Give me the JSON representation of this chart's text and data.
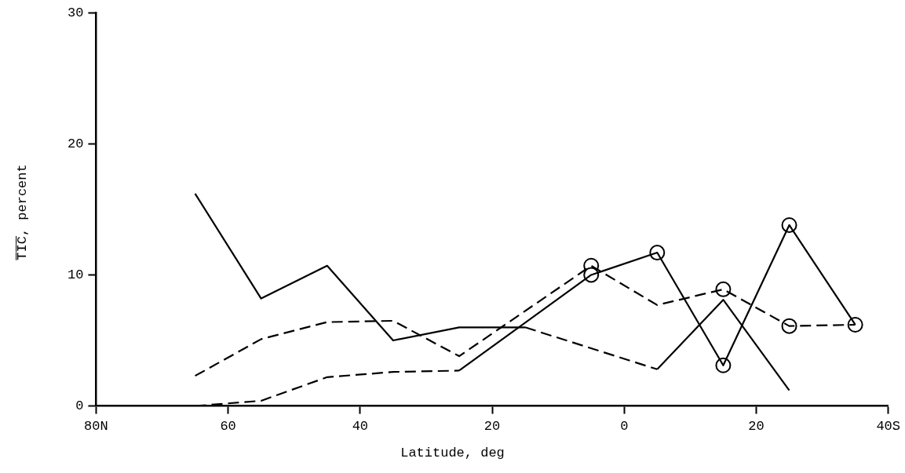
{
  "chart_data": {
    "type": "line",
    "xlabel": "Latitude, deg",
    "ylabel": "T̅I̅C̅, percent",
    "xlim": [
      80,
      -40
    ],
    "xticks": [
      {
        "value": 80,
        "label": "80N"
      },
      {
        "value": 60,
        "label": "60"
      },
      {
        "value": 40,
        "label": "40"
      },
      {
        "value": 20,
        "label": "20"
      },
      {
        "value": 0,
        "label": "0"
      },
      {
        "value": -20,
        "label": "20"
      },
      {
        "value": -40,
        "label": "40S"
      }
    ],
    "ylim": [
      0,
      30
    ],
    "yticks": [
      0,
      10,
      20,
      30
    ],
    "grid": false,
    "legend": false,
    "series": [
      {
        "color": "#000000",
        "line_style": "solid",
        "marker": "none",
        "x": [
          65,
          55,
          45,
          35,
          25,
          15
        ],
        "values": [
          16.2,
          8.2,
          10.7,
          5.0,
          6.0,
          6.0
        ]
      },
      {
        "color": "#000000",
        "line_style": "dashed",
        "marker": "none",
        "x": [
          15,
          -5
        ],
        "values": [
          6.0,
          2.8
        ]
      },
      {
        "color": "#000000",
        "line_style": "solid",
        "marker": "none",
        "x": [
          -5,
          -15,
          -25
        ],
        "values": [
          2.8,
          8.1,
          1.2
        ]
      },
      {
        "color": "#000000",
        "line_style": "dashed",
        "marker": "none",
        "x": [
          65,
          55,
          45,
          35,
          25
        ],
        "values": [
          0,
          0.4,
          2.2,
          2.6,
          2.7
        ]
      },
      {
        "color": "#000000",
        "line_style": "solid",
        "marker": "none",
        "x": [
          25,
          5,
          -5,
          -15,
          -25,
          -35
        ],
        "values": [
          2.7,
          10.0,
          11.7,
          3.1,
          13.8,
          6.2
        ]
      },
      {
        "color": "#000000",
        "line_style": "dashed",
        "marker": "none",
        "x": [
          65,
          55,
          45,
          35,
          25,
          5,
          -5,
          -15,
          -25,
          -35
        ],
        "values": [
          2.3,
          5.1,
          6.4,
          6.5,
          3.8,
          10.7,
          7.7,
          8.9,
          6.1,
          6.2
        ]
      },
      {
        "type": "scatter",
        "color": "#000000",
        "marker": "circle",
        "x": [
          5,
          5,
          -5,
          -15,
          -15,
          -25,
          -25,
          -35
        ],
        "values": [
          10.7,
          10.0,
          11.7,
          3.1,
          8.9,
          13.8,
          6.1,
          6.2
        ]
      }
    ]
  }
}
